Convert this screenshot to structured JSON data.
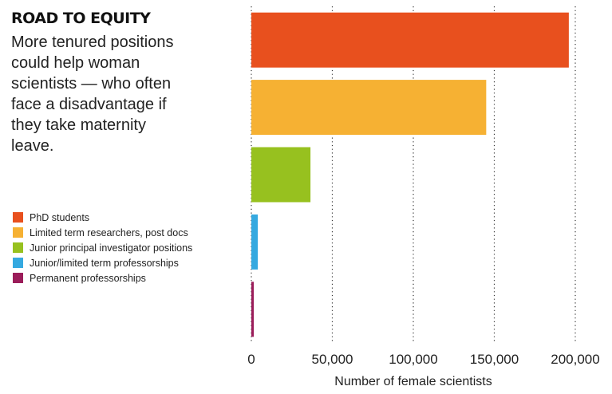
{
  "chart_data": {
    "type": "bar",
    "orientation": "horizontal",
    "title": "ROAD TO EQUITY",
    "subtitle": "More tenured positions could help woman scientists — who often face a disadvantage if they take maternity leave.",
    "categories": [
      "PhD students",
      "Limited term researchers, post docs",
      "Junior principal investigator positions",
      "Junior/limited term professorships",
      "Permanent professorships"
    ],
    "values": [
      196000,
      145000,
      36500,
      4000,
      1500
    ],
    "colors": [
      "#e8501e",
      "#f6b133",
      "#97c11f",
      "#35a9e0",
      "#9b1d5a"
    ],
    "xlabel": "Number of female scientists",
    "xlim": [
      0,
      200000
    ],
    "xticks": [
      0,
      50000,
      100000,
      150000,
      200000
    ],
    "xtick_labels": [
      "0",
      "50,000",
      "100,000",
      "150,000",
      "200,000"
    ],
    "grid": "vertical dotted",
    "legend_position": "left"
  }
}
